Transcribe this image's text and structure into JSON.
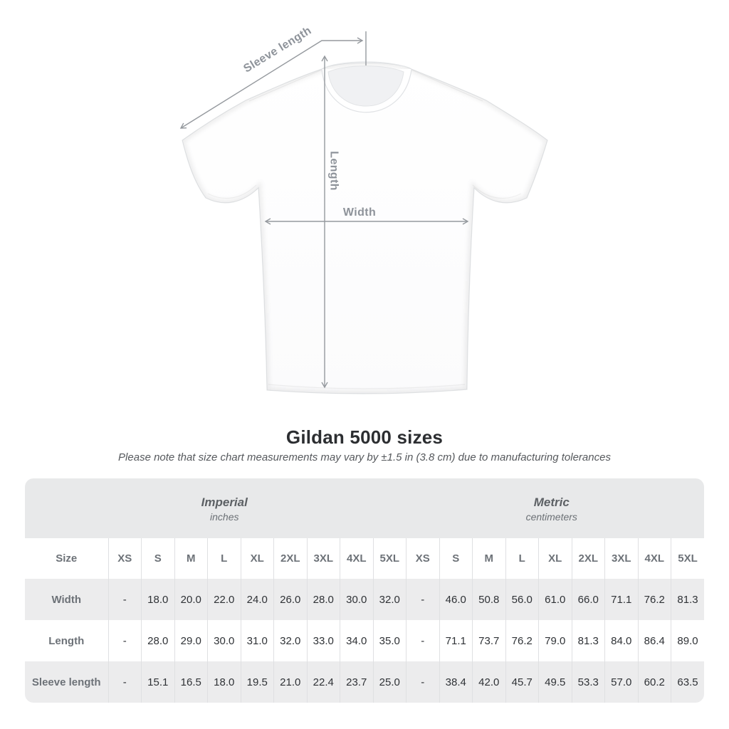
{
  "colors": {
    "table_header_bg": "#e8e9ea",
    "row_stripe_bg": "#ececed",
    "column_separator": "#dfe0e2",
    "value_text": "#2f3236",
    "label_text": "#6d7278",
    "annotation_gray": "#95999e",
    "title_text": "#2c2e31"
  },
  "diagram": {
    "sleeve_length_label": "Sleeve length",
    "length_label": "Length",
    "width_label": "Width"
  },
  "heading": {
    "title": "Gildan 5000 sizes",
    "subtitle": "Please note that size chart measurements may vary by ±1.5 in (3.8 cm) due to manufacturing tolerances"
  },
  "size_chart": {
    "size_header_label": "Size",
    "unit_groups": [
      {
        "label": "Imperial",
        "sublabel": "inches"
      },
      {
        "label": "Metric",
        "sublabel": "centimeters"
      }
    ],
    "sizes": [
      "XS",
      "S",
      "M",
      "L",
      "XL",
      "2XL",
      "3XL",
      "4XL",
      "5XL"
    ],
    "rows": [
      {
        "key": "width",
        "label": "Width",
        "imperial": [
          "-",
          "18.0",
          "20.0",
          "22.0",
          "24.0",
          "26.0",
          "28.0",
          "30.0",
          "32.0"
        ],
        "metric": [
          "-",
          "46.0",
          "50.8",
          "56.0",
          "61.0",
          "66.0",
          "71.1",
          "76.2",
          "81.3"
        ]
      },
      {
        "key": "length",
        "label": "Length",
        "imperial": [
          "-",
          "28.0",
          "29.0",
          "30.0",
          "31.0",
          "32.0",
          "33.0",
          "34.0",
          "35.0"
        ],
        "metric": [
          "-",
          "71.1",
          "73.7",
          "76.2",
          "79.0",
          "81.3",
          "84.0",
          "86.4",
          "89.0"
        ]
      },
      {
        "key": "sleeve-length",
        "label": "Sleeve length",
        "imperial": [
          "-",
          "15.1",
          "16.5",
          "18.0",
          "19.5",
          "21.0",
          "22.4",
          "23.7",
          "25.0"
        ],
        "metric": [
          "-",
          "38.4",
          "42.0",
          "45.7",
          "49.5",
          "53.3",
          "57.0",
          "60.2",
          "63.5"
        ]
      }
    ]
  },
  "chart_data": {
    "type": "table",
    "title": "Gildan 5000 sizes",
    "note": "Please note that size chart measurements may vary by ±1.5 in (3.8 cm) due to manufacturing tolerances",
    "unit_groups": [
      "Imperial (inches)",
      "Metric (centimeters)"
    ],
    "columns": [
      "Size",
      "XS",
      "S",
      "M",
      "L",
      "XL",
      "2XL",
      "3XL",
      "4XL",
      "5XL"
    ],
    "rows": [
      {
        "measurement": "Width",
        "imperial_inches": [
          "-",
          "18.0",
          "20.0",
          "22.0",
          "24.0",
          "26.0",
          "28.0",
          "30.0",
          "32.0"
        ],
        "metric_centimeters": [
          "-",
          "46.0",
          "50.8",
          "56.0",
          "61.0",
          "66.0",
          "71.1",
          "76.2",
          "81.3"
        ]
      },
      {
        "measurement": "Length",
        "imperial_inches": [
          "-",
          "28.0",
          "29.0",
          "30.0",
          "31.0",
          "32.0",
          "33.0",
          "34.0",
          "35.0"
        ],
        "metric_centimeters": [
          "-",
          "71.1",
          "73.7",
          "76.2",
          "79.0",
          "81.3",
          "84.0",
          "86.4",
          "89.0"
        ]
      },
      {
        "measurement": "Sleeve length",
        "imperial_inches": [
          "-",
          "15.1",
          "16.5",
          "18.0",
          "19.5",
          "21.0",
          "22.4",
          "23.7",
          "25.0"
        ],
        "metric_centimeters": [
          "-",
          "38.4",
          "42.0",
          "45.7",
          "49.5",
          "53.3",
          "57.0",
          "60.2",
          "63.5"
        ]
      }
    ]
  }
}
